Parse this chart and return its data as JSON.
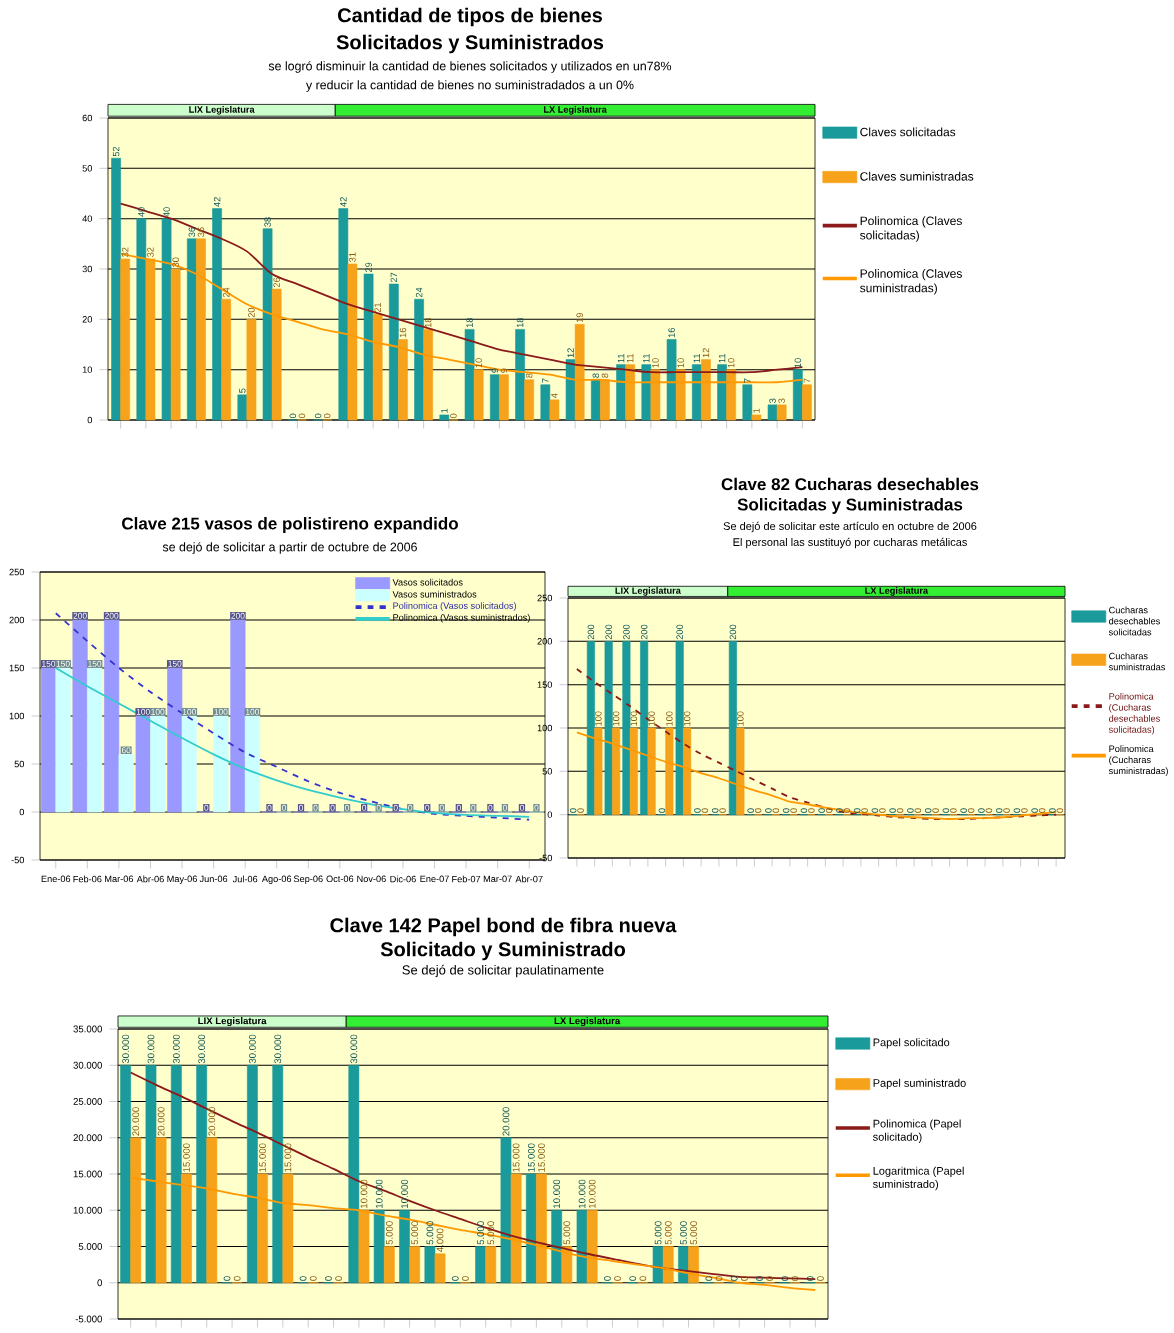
{
  "chart_data": [
    {
      "type": "bar",
      "title": "Cantidad de tipos de bienes",
      "subtitle": "Solicitados y Suministrados",
      "annotations": [
        "se logró disminuir la cantidad de bienes solicitados y utilizados en un78%",
        "y reducir la cantidad de bienes no suministradados a un 0%",
        "LIX Legislatura",
        "LX Legislatura"
      ],
      "categories": [
        null,
        null,
        null,
        null,
        null,
        null,
        null,
        null,
        null,
        null,
        null,
        null,
        null,
        null,
        null,
        null,
        null,
        null,
        null,
        null,
        null,
        null,
        null,
        null,
        null,
        null,
        null,
        null
      ],
      "series": [
        {
          "name": "Claves solicitadas",
          "color": "#1a9a9a",
          "values": [
            52,
            40,
            40,
            36,
            42,
            5,
            38,
            0,
            0,
            42,
            29,
            27,
            24,
            1,
            18,
            9,
            18,
            7,
            12,
            8,
            11,
            11,
            16,
            11,
            11,
            7,
            3,
            10
          ],
          "value_labels": [
            "52",
            "40",
            "40",
            "36",
            "42",
            "5",
            "38",
            "0",
            "0",
            "42",
            "29",
            "27",
            "24",
            "1",
            "18",
            "9",
            "18",
            "7",
            "12",
            "8",
            "11",
            "11",
            "16",
            "11",
            "11",
            "7",
            "3",
            "10"
          ]
        },
        {
          "name": "Claves suministradas",
          "color": "#f7a21b",
          "values": [
            32,
            32,
            30,
            36,
            24,
            20,
            26,
            0,
            0,
            31,
            21,
            16,
            18,
            0,
            10,
            9,
            8,
            4,
            19,
            8,
            11,
            10,
            10,
            12,
            10,
            1,
            3,
            7
          ],
          "value_labels": [
            "32",
            "32",
            "30",
            "36",
            "24",
            "20",
            "26",
            "0",
            "0",
            "31",
            "21",
            "16",
            "18",
            "0",
            "10",
            "9",
            "8",
            "4",
            "19",
            "8",
            "11",
            "10",
            "10",
            "12",
            "10",
            "1",
            "3",
            "7"
          ]
        },
        {
          "name": "Polinomica (Claves solicitadas)",
          "type": "line",
          "color": "#8b1a1a",
          "values": [
            43,
            41.5,
            40,
            38,
            36,
            33.5,
            29,
            27,
            25,
            23,
            21.5,
            20,
            18.5,
            17,
            15.5,
            14,
            13,
            12,
            11,
            10.5,
            10,
            9.5,
            9.5,
            9.5,
            9.5,
            9.5,
            10,
            10.5
          ]
        },
        {
          "name": "Polinomica (Claves suministradas)",
          "type": "line",
          "color": "#ff9900",
          "values": [
            33,
            32,
            31,
            29,
            26,
            23,
            21,
            19.5,
            18,
            17,
            15.5,
            14.5,
            13,
            12,
            11,
            10,
            9.5,
            9,
            8,
            8,
            7.5,
            7.5,
            7.5,
            7.5,
            7.5,
            7.5,
            7.5,
            8
          ]
        }
      ],
      "ylim": [
        0,
        60
      ],
      "yticks": [
        0,
        10,
        20,
        30,
        40,
        50,
        60
      ],
      "grid": "y",
      "legend": "right",
      "tick_labels": "y"
    },
    {
      "type": "bar",
      "title": "Clave 215 vasos de polistireno expandido",
      "annotations": [
        "se dejó de solicitar a partir de octubre de 2006"
      ],
      "categories": [
        "Ene-06",
        "Feb-06",
        "Mar-06",
        "Abr-06",
        "May-06",
        "Jun-06",
        "Jul-06",
        "Ago-06",
        "Sep-06",
        "Oct-06",
        "Nov-06",
        "Dic-06",
        "Ene-07",
        "Feb-07",
        "Mar-07",
        "Abr-07"
      ],
      "series": [
        {
          "name": "Vasos solicitados",
          "color": "#9999ff",
          "values": [
            150,
            200,
            200,
            100,
            150,
            0,
            200,
            0,
            0,
            0,
            0,
            0,
            0,
            0,
            0,
            0
          ],
          "value_labels": [
            "150",
            "200",
            "200",
            "100",
            "150",
            "0",
            "200",
            "0",
            "0",
            "0",
            "0",
            "0",
            "0",
            "0",
            "0",
            "0"
          ]
        },
        {
          "name": "Vasos suministrados",
          "color": "#ccffff",
          "values": [
            150,
            150,
            60,
            100,
            100,
            100,
            100,
            0,
            0,
            0,
            0,
            0,
            0,
            0,
            0,
            0
          ],
          "value_labels": [
            "150",
            "150",
            "60",
            "100",
            "100",
            "100",
            "100",
            "0",
            "0",
            "0",
            "0",
            "0",
            "0",
            "0",
            "0",
            "0"
          ]
        },
        {
          "name": "Polinomica (Vasos solicitados)",
          "type": "line",
          "color": "#3333cc",
          "line_style": "dashed",
          "values": [
            207,
            178,
            150,
            125,
            103,
            82,
            62,
            47,
            32,
            20,
            11,
            3,
            -2,
            -4,
            -6,
            -8
          ]
        },
        {
          "name": "Polinomica (Vasos suministrados)",
          "type": "line",
          "color": "#33cccc",
          "values": [
            150,
            131,
            113,
            95,
            77,
            60,
            45,
            33,
            23,
            15,
            8,
            3,
            -1,
            -3,
            -4,
            -5
          ]
        }
      ],
      "ylim": [
        -50,
        250
      ],
      "yticks": [
        -50,
        0,
        50,
        100,
        150,
        200,
        250
      ],
      "grid": "y",
      "legend": "top right"
    },
    {
      "type": "bar",
      "title": "Clave 82 Cucharas desechables",
      "subtitle": "Solicitadas y Suministradas",
      "annotations": [
        "Se dejó de solicitar este artículo en octubre de 2006",
        "El personal las sustituyó por cucharas metálicas",
        "LIX Legislatura",
        "LX Legislatura"
      ],
      "categories": [
        null,
        null,
        null,
        null,
        null,
        null,
        null,
        null,
        null,
        null,
        null,
        null,
        null,
        null,
        null,
        null,
        null,
        null,
        null,
        null,
        null,
        null,
        null,
        null,
        null,
        null,
        null,
        null
      ],
      "series": [
        {
          "name": "Cucharas desechables solicitadas",
          "color": "#1a9a9a",
          "values": [
            0,
            200,
            200,
            200,
            200,
            0,
            200,
            0,
            0,
            200,
            0,
            0,
            0,
            0,
            0,
            0,
            0,
            0,
            0,
            0,
            0,
            0,
            0,
            0,
            0,
            0,
            0,
            0
          ],
          "value_labels": [
            "0",
            "200",
            "200",
            "200",
            "200",
            "0",
            "200",
            "0",
            "0",
            "200",
            "0",
            "0",
            "0",
            "0",
            "0",
            "0",
            "0",
            "0",
            "0",
            "0",
            "0",
            "0",
            "0",
            "0",
            "0",
            "0",
            "0",
            "0"
          ]
        },
        {
          "name": "Cucharas suministradas",
          "color": "#f7a21b",
          "values": [
            0,
            100,
            100,
            100,
            100,
            100,
            100,
            0,
            0,
            100,
            0,
            0,
            0,
            0,
            0,
            0,
            0,
            0,
            0,
            0,
            0,
            0,
            0,
            0,
            0,
            0,
            0,
            0
          ],
          "value_labels": [
            "0",
            "100",
            "100",
            "100",
            "100",
            "100",
            "100",
            "0",
            "0",
            "100",
            "0",
            "0",
            "0",
            "0",
            "0",
            "0",
            "0",
            "0",
            "0",
            "0",
            "0",
            "0",
            "0",
            "0",
            "0",
            "0",
            "0",
            "0"
          ]
        },
        {
          "name": "Polinomica (Cucharas desechables solicitadas)",
          "type": "line",
          "color": "#8b1a1a",
          "line_style": "dashed",
          "values": [
            168,
            153,
            139,
            125,
            110,
            96,
            82,
            70,
            60,
            50,
            40,
            30,
            20,
            14,
            8,
            3,
            1,
            -1,
            -3,
            -4,
            -5,
            -5,
            -5,
            -4,
            -3,
            -2,
            -1,
            0
          ]
        },
        {
          "name": "Polinomica (Cucharas suministradas)",
          "type": "line",
          "color": "#ff9900",
          "values": [
            95,
            88,
            82,
            75,
            68,
            61,
            55,
            48,
            42,
            35,
            28,
            22,
            15,
            12,
            8,
            5,
            2,
            0,
            -2,
            -3,
            -4,
            -5,
            -4,
            -4,
            -3,
            -1,
            1,
            3
          ]
        }
      ],
      "ylim": [
        -50,
        250
      ],
      "yticks": [
        -50,
        0,
        50,
        100,
        150,
        200,
        250
      ],
      "grid": "y",
      "legend": "right",
      "tick_labels": "y"
    },
    {
      "type": "bar",
      "title": "Clave 142 Papel bond de fibra nueva",
      "subtitle": "Solicitado y Suministrado",
      "annotations": [
        "Se dejó de solicitar paulatinamente",
        "LIX Legislatura",
        "LX Legislatura"
      ],
      "categories": [
        null,
        null,
        null,
        null,
        null,
        null,
        null,
        null,
        null,
        null,
        null,
        null,
        null,
        null,
        null,
        null,
        null,
        null,
        null,
        null,
        null,
        null,
        null,
        null,
        null,
        null,
        null,
        null
      ],
      "series": [
        {
          "name": "Papel solicitado",
          "color": "#1a9a9a",
          "values": [
            30000,
            30000,
            30000,
            30000,
            0,
            30000,
            30000,
            0,
            0,
            30000,
            10000,
            10000,
            5000,
            0,
            5000,
            20000,
            15000,
            10000,
            10000,
            0,
            0,
            5000,
            5000,
            0,
            0,
            0,
            0,
            0
          ],
          "value_labels": [
            "30.000",
            "30.000",
            "30.000",
            "30.000",
            "0",
            "30.000",
            "30.000",
            "0",
            "0",
            "30.000",
            "10.000",
            "10.000",
            "5.000",
            "0",
            "5.000",
            "20.000",
            "15.000",
            "10.000",
            "10.000",
            "0",
            "0",
            "5.000",
            "5.000",
            "0",
            "0",
            "0",
            "0",
            "0"
          ]
        },
        {
          "name": "Papel suministrado",
          "color": "#f7a21b",
          "values": [
            20000,
            20000,
            15000,
            20000,
            0,
            15000,
            15000,
            0,
            0,
            10000,
            5000,
            5000,
            4000,
            0,
            5000,
            15000,
            15000,
            5000,
            10000,
            0,
            0,
            5000,
            5000,
            0,
            0,
            0,
            0,
            0
          ],
          "value_labels": [
            "20.000",
            "20.000",
            "15.000",
            "20.000",
            "0",
            "15.000",
            "15.000",
            "0",
            "0",
            "10.000",
            "5.000",
            "5.000",
            "4.000",
            "0",
            "5.000",
            "15.000",
            "15.000",
            "5.000",
            "10.000",
            "0",
            "0",
            "5.000",
            "5.000",
            "0",
            "0",
            "0",
            "0",
            "0"
          ]
        },
        {
          "name": "Polinomica (Papel solicitado)",
          "type": "line",
          "color": "#8b1a1a",
          "values": [
            29000,
            27300,
            25700,
            24000,
            22300,
            20700,
            19000,
            17300,
            15700,
            14000,
            12700,
            11300,
            10000,
            8800,
            7600,
            6500,
            5600,
            4800,
            4000,
            3300,
            2600,
            2000,
            1600,
            1200,
            800,
            700,
            600,
            500
          ]
        },
        {
          "name": "Logaritmica (Papel suministrado)",
          "type": "line",
          "color": "#ff9900",
          "values": [
            14500,
            14000,
            13500,
            13000,
            12300,
            11700,
            11000,
            10700,
            10300,
            10000,
            9300,
            8700,
            8000,
            7300,
            6700,
            6000,
            5200,
            4300,
            3500,
            3000,
            2500,
            2000,
            1300,
            700,
            0,
            -300,
            -700,
            -1000
          ]
        }
      ],
      "ylim": [
        -5000,
        35000
      ],
      "yticks": [
        {
          "value": -5000,
          "label": "-5.000"
        },
        {
          "value": 0,
          "label": "0"
        },
        {
          "value": 5000,
          "label": "5.000"
        },
        {
          "value": 10000,
          "label": "10.000"
        },
        {
          "value": 15000,
          "label": "15.000"
        },
        {
          "value": 20000,
          "label": "20.000"
        },
        {
          "value": 25000,
          "label": "25.000"
        },
        {
          "value": 30000,
          "label": "30.000"
        },
        {
          "value": 35000,
          "label": "35.000"
        }
      ],
      "grid": "y",
      "legend": "right",
      "tick_labels": "y"
    }
  ]
}
